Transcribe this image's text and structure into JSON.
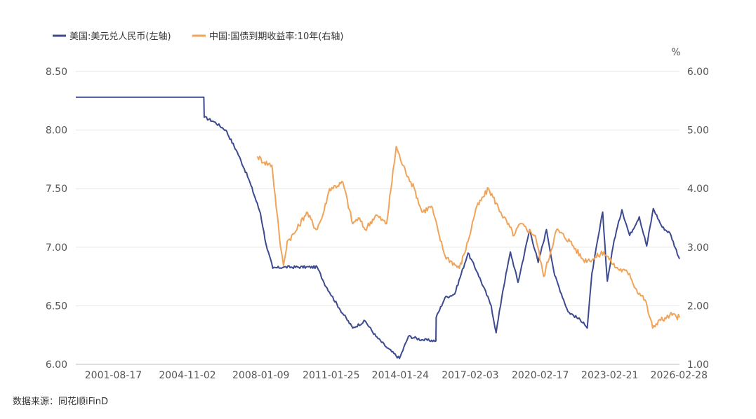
{
  "chart_data": {
    "type": "line",
    "title": "",
    "y_unit_right": "%",
    "source_label": "数据来源：同花顺iFinD",
    "colors": {
      "usd_cny": "#3d4a8f",
      "cn10y": "#f0a45a",
      "grid": "#e6e6e6"
    },
    "x_date_range": [
      "2000-01-01",
      "2026-02-28"
    ],
    "x_ticks": [
      "2001-08-17",
      "2004-11-02",
      "2008-01-09",
      "2011-01-25",
      "2014-01-24",
      "2017-02-03",
      "2020-02-17",
      "2023-02-21",
      "2026-02-28"
    ],
    "y_left": {
      "ylim": [
        6.0,
        8.5
      ],
      "ticks": [
        "6.00",
        "6.50",
        "7.00",
        "7.50",
        "8.00",
        "8.50"
      ]
    },
    "y_right": {
      "ylim": [
        1.0,
        6.0
      ],
      "ticks": [
        "1.00",
        "2.00",
        "3.00",
        "4.00",
        "5.00",
        "6.00"
      ]
    },
    "series": [
      {
        "name": "美国:美元兑人民币(左轴)",
        "axis": "left",
        "color": "#3d4a8f",
        "points": [
          [
            "2000-01-01",
            8.28
          ],
          [
            "2005-07-20",
            8.28
          ],
          [
            "2005-07-25",
            8.11
          ],
          [
            "2006-01-01",
            8.07
          ],
          [
            "2006-07-01",
            8.0
          ],
          [
            "2007-01-01",
            7.81
          ],
          [
            "2007-07-01",
            7.58
          ],
          [
            "2008-01-01",
            7.29
          ],
          [
            "2008-04-01",
            7.02
          ],
          [
            "2008-07-15",
            6.82
          ],
          [
            "2009-01-01",
            6.83
          ],
          [
            "2010-06-18",
            6.83
          ],
          [
            "2010-10-01",
            6.7
          ],
          [
            "2011-06-01",
            6.48
          ],
          [
            "2012-01-01",
            6.31
          ],
          [
            "2012-07-15",
            6.37
          ],
          [
            "2013-01-01",
            6.24
          ],
          [
            "2013-07-01",
            6.14
          ],
          [
            "2014-01-10",
            6.05
          ],
          [
            "2014-06-01",
            6.24
          ],
          [
            "2015-01-01",
            6.21
          ],
          [
            "2015-08-10",
            6.2
          ],
          [
            "2015-08-14",
            6.4
          ],
          [
            "2016-01-01",
            6.57
          ],
          [
            "2016-06-01",
            6.6
          ],
          [
            "2016-12-30",
            6.95
          ],
          [
            "2017-06-01",
            6.78
          ],
          [
            "2018-01-01",
            6.5
          ],
          [
            "2018-03-20",
            6.27
          ],
          [
            "2018-07-01",
            6.62
          ],
          [
            "2018-11-01",
            6.96
          ],
          [
            "2019-03-01",
            6.7
          ],
          [
            "2019-09-01",
            7.15
          ],
          [
            "2020-01-15",
            6.87
          ],
          [
            "2020-05-25",
            7.15
          ],
          [
            "2020-10-01",
            6.76
          ],
          [
            "2021-05-01",
            6.45
          ],
          [
            "2021-12-31",
            6.36
          ],
          [
            "2022-03-01",
            6.31
          ],
          [
            "2022-05-15",
            6.78
          ],
          [
            "2022-10-31",
            7.3
          ],
          [
            "2023-01-13",
            6.71
          ],
          [
            "2023-05-01",
            7.06
          ],
          [
            "2023-09-01",
            7.32
          ],
          [
            "2024-01-01",
            7.1
          ],
          [
            "2024-06-01",
            7.26
          ],
          [
            "2024-09-27",
            7.01
          ],
          [
            "2025-01-10",
            7.33
          ],
          [
            "2025-06-01",
            7.17
          ],
          [
            "2025-10-01",
            7.12
          ],
          [
            "2026-02-28",
            6.9
          ]
        ]
      },
      {
        "name": "中国:国债到期收益率:10年(右轴)",
        "axis": "right",
        "color": "#f0a45a",
        "points": [
          [
            "2007-11-15",
            4.55
          ],
          [
            "2008-03-01",
            4.45
          ],
          [
            "2008-07-01",
            4.4
          ],
          [
            "2008-11-15",
            3.0
          ],
          [
            "2008-12-31",
            2.69
          ],
          [
            "2009-03-01",
            3.1
          ],
          [
            "2009-07-01",
            3.25
          ],
          [
            "2010-01-01",
            3.6
          ],
          [
            "2010-06-01",
            3.3
          ],
          [
            "2010-09-01",
            3.5
          ],
          [
            "2011-01-01",
            4.0
          ],
          [
            "2011-08-01",
            4.1
          ],
          [
            "2011-12-31",
            3.4
          ],
          [
            "2012-04-01",
            3.5
          ],
          [
            "2012-07-15",
            3.3
          ],
          [
            "2013-01-01",
            3.55
          ],
          [
            "2013-06-20",
            3.4
          ],
          [
            "2013-11-20",
            4.72
          ],
          [
            "2014-03-01",
            4.4
          ],
          [
            "2014-06-01",
            4.2
          ],
          [
            "2014-09-01",
            4.0
          ],
          [
            "2015-01-01",
            3.6
          ],
          [
            "2015-06-01",
            3.7
          ],
          [
            "2015-10-01",
            3.2
          ],
          [
            "2016-01-01",
            2.85
          ],
          [
            "2016-08-15",
            2.64
          ],
          [
            "2016-12-31",
            3.1
          ],
          [
            "2017-05-01",
            3.65
          ],
          [
            "2017-11-20",
            4.0
          ],
          [
            "2018-06-01",
            3.6
          ],
          [
            "2018-12-31",
            3.2
          ],
          [
            "2019-04-01",
            3.4
          ],
          [
            "2019-12-01",
            3.2
          ],
          [
            "2020-04-10",
            2.5
          ],
          [
            "2020-11-01",
            3.3
          ],
          [
            "2021-06-01",
            3.1
          ],
          [
            "2021-12-31",
            2.78
          ],
          [
            "2022-06-01",
            2.8
          ],
          [
            "2022-11-15",
            2.92
          ],
          [
            "2023-06-01",
            2.65
          ],
          [
            "2023-12-31",
            2.55
          ],
          [
            "2024-04-01",
            2.3
          ],
          [
            "2024-09-01",
            2.1
          ],
          [
            "2024-12-31",
            1.62
          ],
          [
            "2025-04-01",
            1.75
          ],
          [
            "2025-08-01",
            1.78
          ],
          [
            "2025-10-01",
            1.85
          ],
          [
            "2026-02-28",
            1.8
          ]
        ]
      }
    ],
    "legend": [
      {
        "label": "美国:美元兑人民币(左轴)",
        "color": "#3d4a8f"
      },
      {
        "label": "中国:国债到期收益率:10年(右轴)",
        "color": "#f0a45a"
      }
    ]
  }
}
